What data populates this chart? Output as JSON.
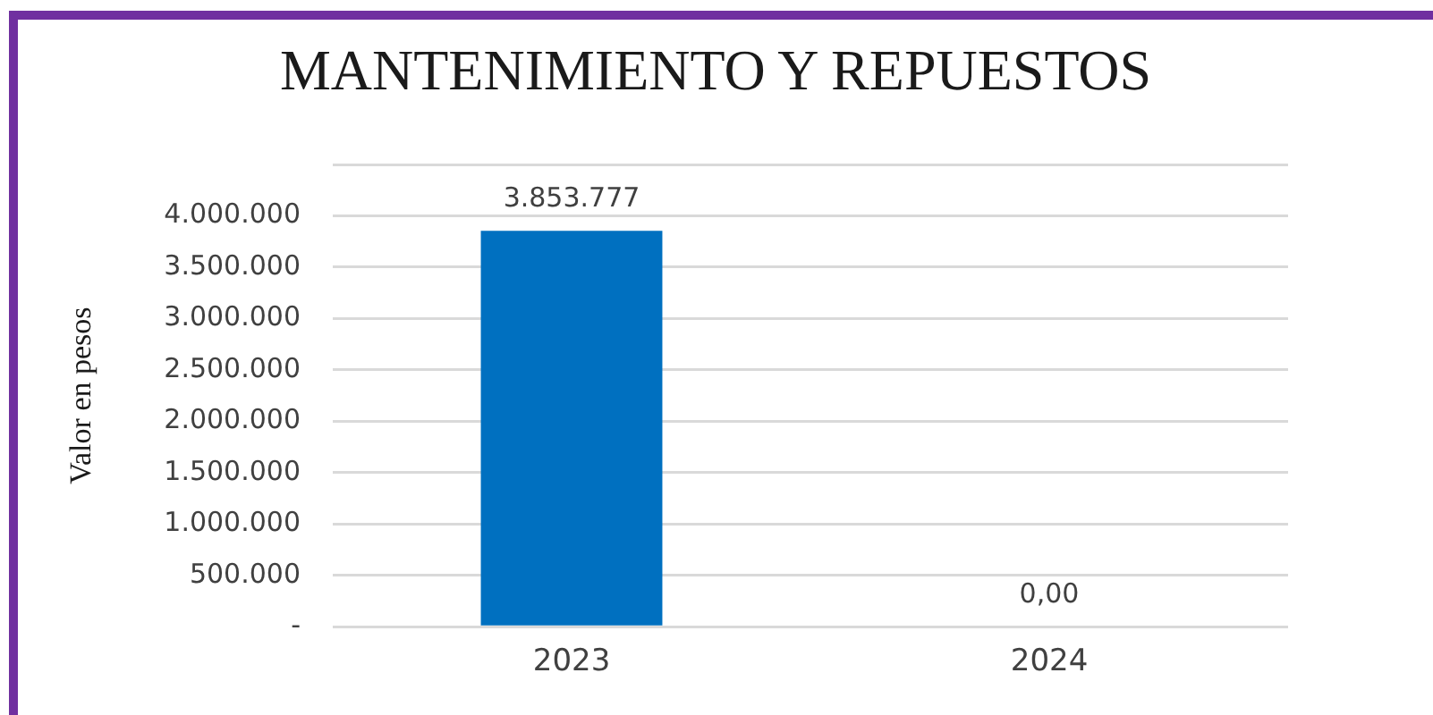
{
  "chart_data": {
    "type": "bar",
    "title": "MANTENIMIENTO Y REPUESTOS",
    "ylabel": "Valor en pesos",
    "categories": [
      "2023",
      "2024"
    ],
    "values": [
      3853777,
      0
    ],
    "colors": [
      "#0070c0",
      "#c00000"
    ],
    "value_labels": [
      "3.853.777",
      "0,00"
    ],
    "ylim": [
      0,
      4500000
    ],
    "yticks": [
      {
        "value": 0,
        "label": "-"
      },
      {
        "value": 500000,
        "label": "500.000"
      },
      {
        "value": 1000000,
        "label": "1.000.000"
      },
      {
        "value": 1500000,
        "label": "1.500.000"
      },
      {
        "value": 2000000,
        "label": "2.000.000"
      },
      {
        "value": 2500000,
        "label": "2.500.000"
      },
      {
        "value": 3000000,
        "label": "3.000.000"
      },
      {
        "value": 3500000,
        "label": "3.500.000"
      },
      {
        "value": 4000000,
        "label": "4.000.000"
      },
      {
        "value": 4500000,
        "label": null
      }
    ],
    "grid": "y"
  }
}
